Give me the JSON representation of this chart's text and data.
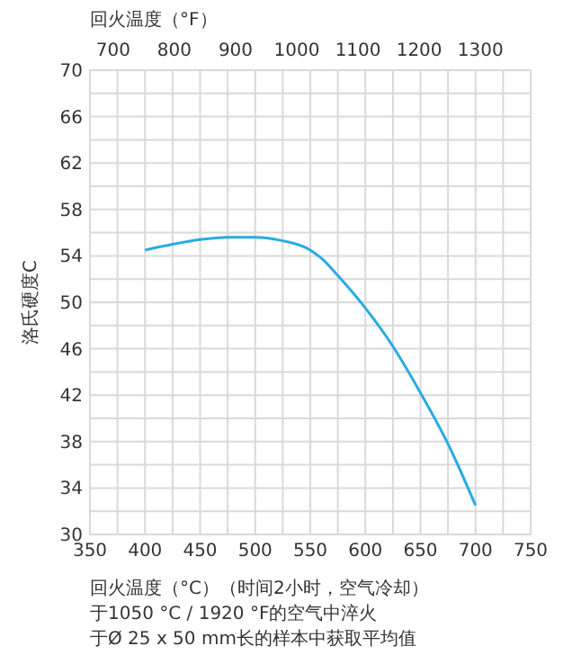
{
  "chart_data": {
    "type": "line",
    "xlabel": "回火温度（°C）（时间2小时，空气冷却）",
    "x2label": "回火温度（°F）",
    "ylabel": "洛氏硬度C",
    "annotations": [
      "于1050 °C / 1920 °F的空气中淬火",
      "于Ø 25 x 50 mm长的样本中获取平均值"
    ],
    "x": [
      400,
      425,
      450,
      475,
      500,
      525,
      550,
      560,
      575,
      600,
      625,
      650,
      675,
      700
    ],
    "series": [
      {
        "color": "#29abe2",
        "values": [
          54.5,
          55.0,
          55.4,
          55.6,
          55.6,
          55.3,
          54.5,
          53.8,
          52.3,
          49.5,
          46.2,
          42.2,
          37.8,
          32.5
        ]
      }
    ],
    "xlim": [
      350,
      750
    ],
    "xticks": [
      350,
      {
        "value": 375,
        "label": null
      },
      400,
      {
        "value": 425,
        "label": null
      },
      450,
      {
        "value": 475,
        "label": null
      },
      500,
      {
        "value": 525,
        "label": null
      },
      550,
      {
        "value": 575,
        "label": null
      },
      600,
      {
        "value": 625,
        "label": null
      },
      650,
      {
        "value": 675,
        "label": null
      },
      700,
      {
        "value": 725,
        "label": null
      },
      750
    ],
    "ylim": [
      30,
      70
    ],
    "yticks": [
      30,
      {
        "value": 32,
        "label": null
      },
      34,
      {
        "value": 36,
        "label": null
      },
      38,
      {
        "value": 40,
        "label": null
      },
      42,
      {
        "value": 44,
        "label": null
      },
      46,
      {
        "value": 48,
        "label": null
      },
      50,
      {
        "value": 52,
        "label": null
      },
      54,
      {
        "value": 56,
        "label": null
      },
      58,
      {
        "value": 60,
        "label": null
      },
      62,
      {
        "value": 64,
        "label": null
      },
      66,
      {
        "value": 68,
        "label": null
      },
      70
    ],
    "x2lim": [
      662,
      1382
    ],
    "x2ticks": [
      700,
      800,
      900,
      1000,
      1100,
      1200,
      1300
    ],
    "grid": true,
    "line_style": "solid",
    "marker": "none"
  }
}
